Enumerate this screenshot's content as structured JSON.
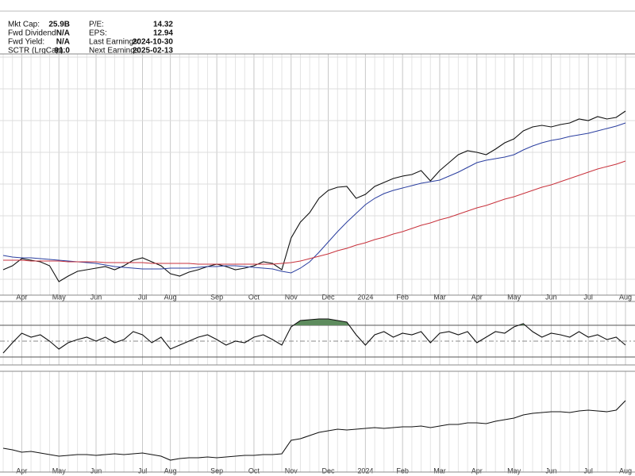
{
  "header": {
    "rows": [
      [
        "Mkt Cap:",
        "25.9B",
        "P/E:",
        "14.32"
      ],
      [
        "Fwd Dividend:",
        "N/A",
        "EPS:",
        "12.94"
      ],
      [
        "Fwd Yield:",
        "N/A",
        "Last Earnings:",
        "2024-10-30"
      ],
      [
        "SCTR (LrgCap):",
        "91.0",
        "Next Earnings:",
        "2025-02-13"
      ]
    ]
  },
  "chart_data": [
    {
      "type": "line",
      "categories": [
        null,
        null,
        "Apr",
        null,
        null,
        null,
        "May",
        null,
        null,
        null,
        "Jun",
        null,
        null,
        null,
        null,
        "Jul",
        null,
        null,
        "Aug",
        null,
        null,
        null,
        null,
        "Sep",
        null,
        null,
        null,
        "Oct",
        null,
        null,
        null,
        "Nov",
        null,
        null,
        null,
        "Dec",
        null,
        null,
        null,
        "2024",
        null,
        null,
        null,
        "Feb",
        null,
        null,
        null,
        "Mar",
        null,
        null,
        null,
        "Apr",
        null,
        null,
        null,
        "May",
        null,
        null,
        null,
        "Jun",
        null,
        null,
        null,
        "Jul",
        null,
        null,
        null,
        "Aug"
      ],
      "ylim": [
        0,
        304
      ],
      "yticks": [
        20,
        60,
        100,
        140,
        180,
        220,
        260,
        300
      ],
      "grid": true,
      "series": [
        {
          "color": "#111111",
          "values": [
            32,
            37,
            46,
            44,
            42,
            37,
            17,
            24,
            30,
            32,
            34,
            36,
            32,
            37,
            44,
            47,
            42,
            37,
            27,
            24,
            29,
            32,
            36,
            39,
            36,
            32,
            34,
            37,
            42,
            40,
            32,
            72,
            92,
            104,
            122,
            132,
            136,
            137,
            122,
            127,
            137,
            142,
            147,
            150,
            152,
            157,
            144,
            157,
            167,
            177,
            182,
            180,
            177,
            184,
            192,
            197,
            207,
            212,
            214,
            212,
            215,
            217,
            222,
            220,
            225,
            222,
            224,
            232
          ]
        },
        {
          "color": "#2b3fa0",
          "values": [
            50,
            48,
            47,
            47,
            46,
            45,
            44,
            43,
            42,
            41,
            40,
            38,
            36,
            35,
            34,
            33,
            33,
            33,
            34,
            34,
            34,
            35,
            36,
            36,
            37,
            37,
            36,
            35,
            34,
            33,
            30,
            28,
            34,
            42,
            54,
            67,
            80,
            92,
            103,
            114,
            122,
            128,
            132,
            135,
            138,
            141,
            143,
            145,
            150,
            155,
            161,
            167,
            170,
            172,
            174,
            177,
            183,
            188,
            192,
            195,
            197,
            200,
            202,
            204,
            207,
            210,
            213,
            217
          ]
        },
        {
          "color": "#c8323c",
          "values": [
            44,
            44,
            44,
            43,
            43,
            43,
            43,
            42,
            42,
            42,
            42,
            41,
            41,
            41,
            41,
            41,
            40,
            40,
            40,
            40,
            40,
            39,
            39,
            39,
            39,
            39,
            39,
            39,
            39,
            39,
            40,
            41,
            43,
            46,
            49,
            52,
            56,
            59,
            63,
            66,
            70,
            73,
            77,
            80,
            84,
            88,
            91,
            95,
            98,
            102,
            106,
            110,
            113,
            117,
            121,
            124,
            128,
            132,
            136,
            139,
            143,
            147,
            151,
            155,
            159,
            162,
            165,
            169
          ]
        }
      ]
    },
    {
      "type": "line",
      "ylim": [
        20,
        100
      ],
      "yticks": [
        30,
        50,
        70
      ],
      "grid": true,
      "fill_above": 70,
      "fill_color": "#5e8c5e",
      "series": [
        {
          "color": "#111111",
          "values": [
            35,
            48,
            60,
            55,
            58,
            50,
            40,
            48,
            52,
            55,
            50,
            55,
            48,
            52,
            62,
            58,
            48,
            55,
            40,
            45,
            50,
            55,
            58,
            52,
            45,
            50,
            48,
            55,
            58,
            52,
            45,
            68,
            76,
            77,
            78,
            78,
            76,
            74,
            58,
            45,
            58,
            62,
            55,
            60,
            58,
            62,
            48,
            60,
            62,
            58,
            62,
            48,
            55,
            62,
            60,
            68,
            72,
            62,
            55,
            60,
            58,
            55,
            62,
            55,
            58,
            52,
            55,
            45
          ]
        }
      ]
    },
    {
      "type": "line",
      "categories": [
        null,
        null,
        "Apr",
        null,
        null,
        null,
        "May",
        null,
        null,
        null,
        "Jun",
        null,
        null,
        null,
        null,
        "Jul",
        null,
        null,
        "Aug",
        null,
        null,
        null,
        null,
        "Sep",
        null,
        null,
        null,
        "Oct",
        null,
        null,
        null,
        "Nov",
        null,
        null,
        null,
        "Dec",
        null,
        null,
        null,
        "2024",
        null,
        null,
        null,
        "Feb",
        null,
        null,
        null,
        "Mar",
        null,
        null,
        null,
        "Apr",
        null,
        null,
        null,
        "May",
        null,
        null,
        null,
        "Jun",
        null,
        null,
        null,
        "Jul",
        null,
        null,
        null,
        "Aug"
      ],
      "ylim": [
        0,
        127
      ],
      "grid": true,
      "series": [
        {
          "color": "#111111",
          "values": [
            30,
            28,
            25,
            26,
            24,
            22,
            20,
            21,
            22,
            22,
            21,
            22,
            23,
            22,
            23,
            24,
            22,
            20,
            15,
            17,
            18,
            18,
            19,
            18,
            19,
            20,
            21,
            21,
            22,
            22,
            23,
            40,
            42,
            46,
            50,
            52,
            54,
            53,
            54,
            55,
            56,
            55,
            56,
            57,
            57,
            58,
            56,
            58,
            60,
            60,
            62,
            62,
            61,
            64,
            66,
            68,
            72,
            74,
            75,
            76,
            76,
            75,
            77,
            78,
            77,
            76,
            78,
            90
          ]
        }
      ]
    }
  ]
}
